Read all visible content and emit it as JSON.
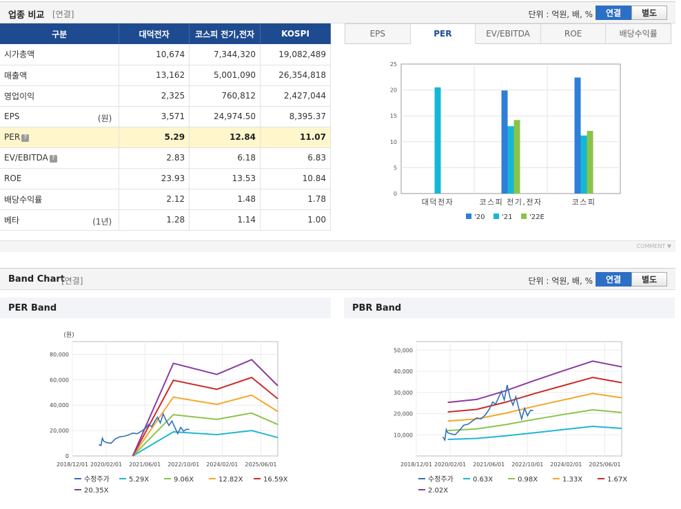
{
  "industry": {
    "title": "업종 비교",
    "sub": "[연결]",
    "unit": "단위 : 억원, 배, %",
    "toggle": {
      "consolidated": "연결",
      "separate": "별도"
    },
    "headers": [
      "구분",
      "대덕전자",
      "코스피 전기,전자",
      "KOSPI"
    ],
    "rows": [
      {
        "label": "시가총액",
        "unit": "",
        "help": false,
        "vals": [
          "10,674",
          "7,344,320",
          "19,082,489"
        ]
      },
      {
        "label": "매출액",
        "unit": "",
        "help": false,
        "vals": [
          "13,162",
          "5,001,090",
          "26,354,818"
        ]
      },
      {
        "label": "영업이익",
        "unit": "",
        "help": false,
        "vals": [
          "2,325",
          "760,812",
          "2,427,044"
        ]
      },
      {
        "label": "EPS",
        "unit": "(원)",
        "help": false,
        "vals": [
          "3,571",
          "24,974.50",
          "8,395.37"
        ]
      },
      {
        "label": "PER",
        "unit": "",
        "help": true,
        "vals": [
          "5.29",
          "12.84",
          "11.07"
        ]
      },
      {
        "label": "EV/EBITDA",
        "unit": "",
        "help": true,
        "vals": [
          "2.83",
          "6.18",
          "6.83"
        ]
      },
      {
        "label": "ROE",
        "unit": "",
        "help": false,
        "vals": [
          "23.93",
          "13.53",
          "10.84"
        ]
      },
      {
        "label": "배당수익률",
        "unit": "",
        "help": false,
        "vals": [
          "2.12",
          "1.48",
          "1.78"
        ]
      },
      {
        "label": "베타",
        "unit": "(1년)",
        "help": false,
        "vals": [
          "1.28",
          "1.14",
          "1.00"
        ]
      }
    ],
    "tabs": [
      "EPS",
      "PER",
      "EV/EBITDA",
      "ROE",
      "배당수익률"
    ],
    "active_tab": "PER",
    "comment": "COMMENT ▼"
  },
  "band": {
    "title": "Band Chart",
    "sub": "[연결]",
    "unit": "단위 : 억원, 배, %",
    "toggle": {
      "consolidated": "연결",
      "separate": "별도"
    }
  },
  "chart_data": [
    {
      "type": "bar",
      "categories": [
        "대덕전자",
        "코스피 전기,전자",
        "코스피"
      ],
      "series": [
        {
          "name": "'20",
          "color": "#2f7ed8",
          "values": [
            null,
            19.9,
            22.4
          ]
        },
        {
          "name": "'21",
          "color": "#14b7d8",
          "values": [
            20.5,
            13.0,
            11.2
          ]
        },
        {
          "name": "'22E",
          "color": "#8bc34a",
          "values": [
            null,
            14.2,
            12.1
          ]
        }
      ],
      "ylim": [
        0,
        25
      ],
      "yticks": [
        0,
        5,
        10,
        15,
        20,
        25
      ]
    },
    {
      "type": "line",
      "title": "PER Band",
      "ylabel": "(원)",
      "ylim": [
        0,
        90000
      ],
      "yticks": [
        0,
        20000,
        40000,
        60000,
        80000
      ],
      "ytick_labels": [
        "0",
        "20,000",
        "40,000",
        "60,000",
        "80,000"
      ],
      "xlim": [
        2018.917,
        2026.0
      ],
      "xticks": [
        2018.917,
        2020.083,
        2021.417,
        2022.75,
        2024.083,
        2025.417
      ],
      "xtick_labels": [
        "2018/12/01",
        "2020/02/01",
        "2021/06/01",
        "2022/10/01",
        "2024/02/01",
        "2025/06/01"
      ],
      "price": {
        "name": "수정주가",
        "color": "#2f6fb8",
        "x": [
          2019.83,
          2019.9,
          2019.95,
          2020.0,
          2020.1,
          2020.25,
          2020.4,
          2020.55,
          2020.7,
          2020.85,
          2021.0,
          2021.15,
          2021.3,
          2021.45,
          2021.55,
          2021.65,
          2021.75,
          2021.85,
          2021.95,
          2022.05,
          2022.15,
          2022.25,
          2022.35,
          2022.45,
          2022.55,
          2022.65,
          2022.75,
          2022.85,
          2022.95
        ],
        "y": [
          9000,
          8200,
          14000,
          11500,
          10500,
          10000,
          13500,
          15000,
          15500,
          16500,
          18000,
          17500,
          19500,
          22000,
          25000,
          23000,
          27000,
          30500,
          26000,
          33000,
          28000,
          24000,
          27500,
          22500,
          17500,
          22500,
          19500,
          21000,
          21000
        ]
      },
      "bands": [
        {
          "name": "5.29X",
          "color": "#1fb6d2",
          "x": [
            2021.0,
            2022.4,
            2023.9,
            2025.1,
            2026.0
          ],
          "y": [
            0,
            19000,
            16800,
            20000,
            14500
          ]
        },
        {
          "name": "9.06X",
          "color": "#8bc34a",
          "x": [
            2021.0,
            2022.4,
            2023.9,
            2025.1,
            2026.0
          ],
          "y": [
            0,
            32500,
            28800,
            33800,
            24800
          ]
        },
        {
          "name": "12.82X",
          "color": "#f4a72a",
          "x": [
            2021.0,
            2022.4,
            2023.9,
            2025.1,
            2026.0
          ],
          "y": [
            0,
            46300,
            40600,
            47900,
            35000
          ]
        },
        {
          "name": "16.59X",
          "color": "#cc2a2a",
          "x": [
            2021.0,
            2022.4,
            2023.9,
            2025.1,
            2026.0
          ],
          "y": [
            0,
            59600,
            52500,
            61800,
            45000
          ]
        },
        {
          "name": "20.35X",
          "color": "#8b3aa0",
          "x": [
            2021.0,
            2022.4,
            2023.9,
            2025.1,
            2026.0
          ],
          "y": [
            0,
            72900,
            64200,
            75800,
            55300
          ]
        }
      ]
    },
    {
      "type": "line",
      "title": "PBR Band",
      "ylabel": "",
      "ylim": [
        0,
        54000
      ],
      "yticks": [
        10000,
        20000,
        30000,
        40000,
        50000
      ],
      "ytick_labels": [
        "10,000",
        "20,000",
        "30,000",
        "40,000",
        "50,000"
      ],
      "xlim": [
        2018.917,
        2026.0
      ],
      "xticks": [
        2018.917,
        2020.083,
        2021.417,
        2022.75,
        2024.083,
        2025.417
      ],
      "xtick_labels": [
        "2018/12/01",
        "2020/02/01",
        "2021/06/01",
        "2022/10/01",
        "2024/02/01",
        "2025/06/01"
      ],
      "price": {
        "name": "수정주가",
        "color": "#2f6fb8",
        "x": [
          2019.83,
          2019.9,
          2019.95,
          2020.0,
          2020.1,
          2020.25,
          2020.4,
          2020.55,
          2020.7,
          2020.85,
          2021.0,
          2021.15,
          2021.3,
          2021.45,
          2021.55,
          2021.65,
          2021.75,
          2021.85,
          2021.95,
          2022.05,
          2022.15,
          2022.25,
          2022.35,
          2022.45,
          2022.55,
          2022.65,
          2022.75,
          2022.85,
          2022.95
        ],
        "y": [
          9000,
          7500,
          12500,
          11000,
          10500,
          10000,
          12000,
          14500,
          15000,
          16500,
          18000,
          17500,
          19500,
          22500,
          25500,
          24500,
          27500,
          30500,
          26500,
          33500,
          27500,
          24000,
          28000,
          22500,
          17500,
          22500,
          19000,
          21500,
          21500
        ]
      },
      "bands": [
        {
          "name": "0.63X",
          "color": "#1fb6d2",
          "x": [
            2020.0,
            2021.0,
            2022.0,
            2023.0,
            2024.0,
            2025.0,
            2026.0
          ],
          "y": [
            7800,
            8300,
            9500,
            11000,
            12500,
            14000,
            13000
          ]
        },
        {
          "name": "0.98X",
          "color": "#8bc34a",
          "x": [
            2020.0,
            2021.0,
            2022.0,
            2023.0,
            2024.0,
            2025.0,
            2026.0
          ],
          "y": [
            12000,
            12800,
            14800,
            17300,
            19600,
            21800,
            20500
          ]
        },
        {
          "name": "1.33X",
          "color": "#f4a72a",
          "x": [
            2020.0,
            2021.0,
            2022.0,
            2023.0,
            2024.0,
            2025.0,
            2026.0
          ],
          "y": [
            16500,
            17500,
            20200,
            23500,
            26500,
            29500,
            27500
          ]
        },
        {
          "name": "1.67X",
          "color": "#cc2a2a",
          "x": [
            2020.0,
            2021.0,
            2022.0,
            2023.0,
            2024.0,
            2025.0,
            2026.0
          ],
          "y": [
            20800,
            22000,
            25400,
            29500,
            33300,
            37100,
            34600
          ]
        },
        {
          "name": "2.02X",
          "color": "#8b3aa0",
          "x": [
            2020.0,
            2021.0,
            2022.0,
            2023.0,
            2024.0,
            2025.0,
            2026.0
          ],
          "y": [
            25300,
            26700,
            30800,
            35700,
            40300,
            44800,
            42100
          ]
        }
      ]
    }
  ]
}
